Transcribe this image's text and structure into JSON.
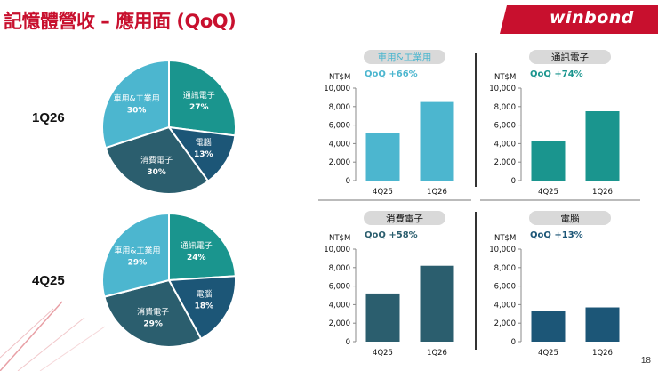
{
  "slide": {
    "title": "記憶體營收 – 應用面 (QoQ)",
    "logo": "winbond",
    "page_number": "18",
    "colors": {
      "accent": "#c8102e",
      "grey_label": "#d9d9d9"
    }
  },
  "chart_data": [
    {
      "type": "pie",
      "period_label": "1Q26",
      "slices": [
        {
          "label": "通訊電子",
          "pct_label": "27%",
          "value": 27,
          "color": "#1a958e"
        },
        {
          "label": "電腦",
          "pct_label": "13%",
          "value": 13,
          "color": "#1c5677"
        },
        {
          "label": "消費電子",
          "pct_label": "30%",
          "value": 30,
          "color": "#2b5e6e"
        },
        {
          "label": "車用&工業用",
          "pct_label": "30%",
          "value": 30,
          "color": "#4cb6cf"
        }
      ]
    },
    {
      "type": "pie",
      "period_label": "4Q25",
      "slices": [
        {
          "label": "通訊電子",
          "pct_label": "24%",
          "value": 24,
          "color": "#1a958e"
        },
        {
          "label": "電腦",
          "pct_label": "18%",
          "value": 18,
          "color": "#1c5677"
        },
        {
          "label": "消費電子",
          "pct_label": "29%",
          "value": 29,
          "color": "#2b5e6e"
        },
        {
          "label": "車用&工業用",
          "pct_label": "29%",
          "value": 29,
          "color": "#4cb6cf"
        }
      ]
    },
    {
      "type": "bar",
      "title": "車用&工業用",
      "subtitle": "QoQ +66%",
      "ylabel": "NT$M",
      "categories": [
        "4Q25",
        "1Q26"
      ],
      "values": [
        5100,
        8500
      ],
      "ylim": [
        0,
        10000
      ],
      "yticks": [
        "0",
        "2,000",
        "4,000",
        "6,000",
        "8,000",
        "10,000"
      ],
      "color": "#4cb6cf",
      "title_color": "#4cb6cf",
      "subtitle_color": "#4cb6cf"
    },
    {
      "type": "bar",
      "title": "通訊電子",
      "subtitle": "QoQ +74%",
      "ylabel": "NT$M",
      "categories": [
        "4Q25",
        "1Q26"
      ],
      "values": [
        4300,
        7500
      ],
      "ylim": [
        0,
        10000
      ],
      "yticks": [
        "0",
        "2,000",
        "4,000",
        "6,000",
        "8,000",
        "10,000"
      ],
      "color": "#1a958e",
      "title_color": "#111111",
      "subtitle_color": "#1a958e"
    },
    {
      "type": "bar",
      "title": "消費電子",
      "subtitle": "QoQ +58%",
      "ylabel": "NT$M",
      "categories": [
        "4Q25",
        "1Q26"
      ],
      "values": [
        5200,
        8200
      ],
      "ylim": [
        0,
        10000
      ],
      "yticks": [
        "0",
        "2,000",
        "4,000",
        "6,000",
        "8,000",
        "10,000"
      ],
      "color": "#2b5e6e",
      "title_color": "#111111",
      "subtitle_color": "#2b5e6e"
    },
    {
      "type": "bar",
      "title": "電腦",
      "subtitle": "QoQ +13%",
      "ylabel": "NT$M",
      "categories": [
        "4Q25",
        "1Q26"
      ],
      "values": [
        3300,
        3700
      ],
      "ylim": [
        0,
        10000
      ],
      "yticks": [
        "0",
        "2,000",
        "4,000",
        "6,000",
        "8,000",
        "10,000"
      ],
      "color": "#1c5677",
      "title_color": "#111111",
      "subtitle_color": "#1c5677"
    }
  ]
}
